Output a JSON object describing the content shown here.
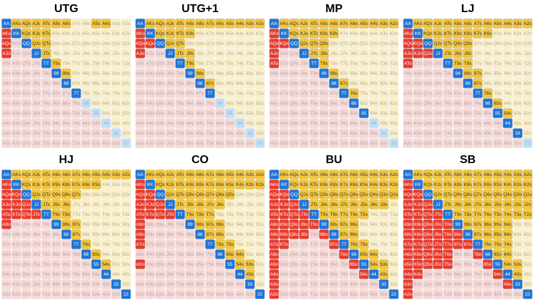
{
  "hands": [
    [
      "AA",
      "AKs",
      "AQs",
      "AJs",
      "ATs",
      "A9s",
      "A8s",
      "A7s",
      "A6s",
      "A5s",
      "A4s",
      "A3s",
      "A2s"
    ],
    [
      "AKo",
      "KK",
      "KQs",
      "KJs",
      "KTs",
      "K9s",
      "K8s",
      "K7s",
      "K6s",
      "K5s",
      "K4s",
      "K3s",
      "K2s"
    ],
    [
      "AQo",
      "KQo",
      "QQ",
      "QJs",
      "QTs",
      "Q9s",
      "Q8s",
      "Q7s",
      "Q6s",
      "Q5s",
      "Q4s",
      "Q3s",
      "Q2s"
    ],
    [
      "AJo",
      "KJo",
      "QJo",
      "JJ",
      "JTs",
      "J9s",
      "J8s",
      "J7s",
      "J6s",
      "J5s",
      "J4s",
      "J3s",
      "J2s"
    ],
    [
      "ATo",
      "KTo",
      "QTo",
      "JTo",
      "TT",
      "T9s",
      "T8s",
      "T7s",
      "T6s",
      "T5s",
      "T4s",
      "T3s",
      "T2s"
    ],
    [
      "A9o",
      "K9o",
      "Q9o",
      "J9o",
      "T9o",
      "99",
      "98s",
      "97s",
      "96s",
      "95s",
      "94s",
      "93s",
      "92s"
    ],
    [
      "A8o",
      "K8o",
      "Q8o",
      "J8o",
      "T8o",
      "98o",
      "88",
      "87s",
      "86s",
      "85s",
      "84s",
      "83s",
      "82s"
    ],
    [
      "A7o",
      "K7o",
      "Q7o",
      "J7o",
      "T7o",
      "97o",
      "87o",
      "77",
      "76s",
      "75s",
      "74s",
      "73s",
      "72s"
    ],
    [
      "A6o",
      "K6o",
      "Q6o",
      "J6o",
      "T6o",
      "96o",
      "86o",
      "76o",
      "66",
      "65s",
      "64s",
      "63s",
      "62s"
    ],
    [
      "A5o",
      "K5o",
      "Q5o",
      "J5o",
      "T5o",
      "95o",
      "85o",
      "75o",
      "65o",
      "55",
      "54s",
      "53s",
      "52s"
    ],
    [
      "A4o",
      "K4o",
      "Q4o",
      "J4o",
      "T4o",
      "94o",
      "84o",
      "74o",
      "64o",
      "54o",
      "44",
      "43s",
      "42s"
    ],
    [
      "A3o",
      "K3o",
      "Q3o",
      "J3o",
      "T3o",
      "93o",
      "83o",
      "73o",
      "63o",
      "53o",
      "43o",
      "33",
      "32s"
    ],
    [
      "A2o",
      "K2o",
      "Q2o",
      "J2o",
      "T2o",
      "92o",
      "82o",
      "72o",
      "62o",
      "52o",
      "42o",
      "32o",
      "22"
    ]
  ],
  "ranges": [
    {
      "title": "UTG",
      "included": [
        "1111111001100",
        "1111100000000",
        "1011100000000",
        "1001100000000",
        "0000110000000",
        "0000011000000",
        "0000001000000",
        "0000000100000",
        "0000000000000",
        "0000000000000",
        "0000000000000",
        "0000000000000",
        "0000000000000"
      ]
    },
    {
      "title": "UTG+1",
      "included": [
        "1111111111111",
        "1111110000000",
        "1111100000000",
        "1001110000000",
        "0000110000000",
        "0000011000000",
        "0000001100000",
        "0000000100000",
        "0000000000000",
        "0000000000000",
        "0000000000000",
        "0000000000000",
        "0000000000000"
      ]
    },
    {
      "title": "MP",
      "included": [
        "1111111111111",
        "1111111000000",
        "1111110000000",
        "1001110000000",
        "1000110000000",
        "0000011000000",
        "0000001100000",
        "0000000110000",
        "0000000010000",
        "0000000001000",
        "0000000000000",
        "0000000000000",
        "0000000000000"
      ]
    },
    {
      "title": "LJ",
      "included": [
        "1111111111111",
        "1111111110000",
        "1111111000000",
        "1111111000000",
        "1000111000000",
        "0000011100000",
        "0000001100000",
        "0000000110000",
        "0000000011000",
        "0000000001100",
        "0000000000100",
        "0000000000010",
        "0000000000000"
      ]
    },
    {
      "title": "HJ",
      "included": [
        "1111111111111",
        "1111111111000",
        "1111111100000",
        "1111111000000",
        "1111111000000",
        "1000011100000",
        "0000001100000",
        "0000000110000",
        "0000000011000",
        "0000000001100",
        "0000000000100",
        "0000000000010",
        "0000000000001"
      ]
    },
    {
      "title": "CO",
      "included": [
        "1111111111111",
        "1111111111111",
        "1111111111000",
        "1111111110000",
        "1111111100000",
        "1000011110000",
        "1000001110000",
        "1000000111000",
        "0000000011100",
        "1000000001110",
        "0000000000110",
        "0000000000010",
        "0000000000001"
      ]
    },
    {
      "title": "BU",
      "included": [
        "1111111111111",
        "1111111111111",
        "1111111111111",
        "1111111111110",
        "1111111111000",
        "1111111110000",
        "1111011110000",
        "1100001111000",
        "1000000111100",
        "1000000011110",
        "1000000001110",
        "1000000000010",
        "1000000000001"
      ]
    },
    {
      "title": "SB",
      "included": [
        "1111111111111",
        "1111111111111",
        "1111111111111",
        "1111111111111",
        "1111111111111",
        "1111111111100",
        "1111111111100",
        "1111111111100",
        "1111100111100",
        "1111100011110",
        "1100000001110",
        "1000000000110",
        "1000000000001"
      ]
    }
  ]
}
